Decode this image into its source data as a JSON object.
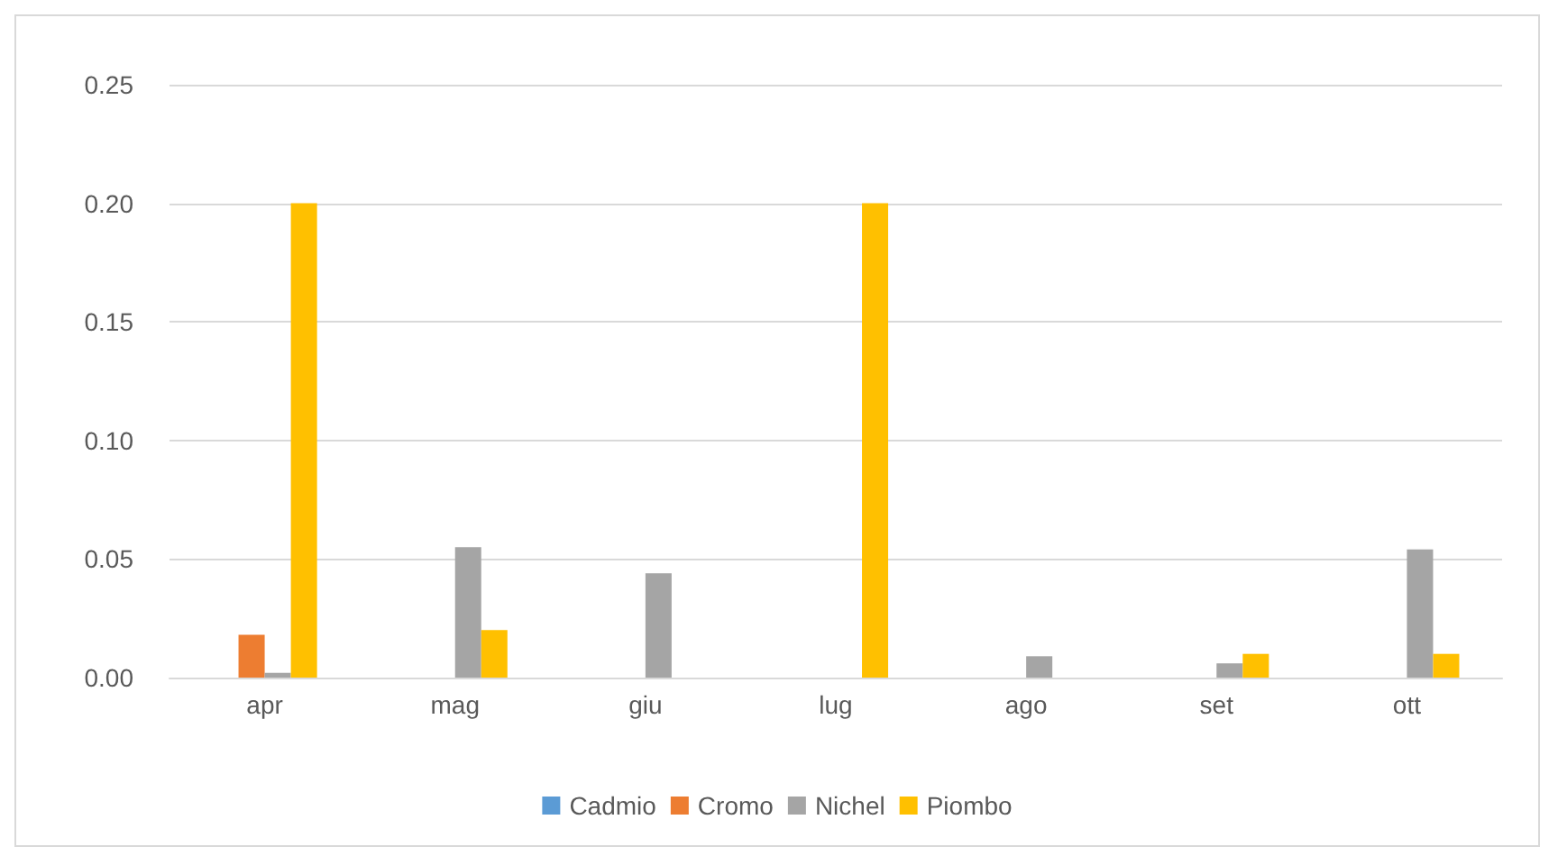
{
  "chart_data": {
    "type": "bar",
    "categories": [
      "apr",
      "mag",
      "giu",
      "lug",
      "ago",
      "set",
      "ott"
    ],
    "series": [
      {
        "name": "Cadmio",
        "color": "#5b9bd5",
        "values": [
          null,
          null,
          null,
          null,
          null,
          null,
          null
        ]
      },
      {
        "name": "Cromo",
        "color": "#ed7d31",
        "values": [
          0.018,
          null,
          null,
          null,
          null,
          null,
          null
        ]
      },
      {
        "name": "Nichel",
        "color": "#a5a5a5",
        "values": [
          0.002,
          0.055,
          0.044,
          null,
          0.009,
          0.006,
          0.054
        ]
      },
      {
        "name": "Piombo",
        "color": "#ffc000",
        "values": [
          0.2,
          0.02,
          null,
          0.2,
          null,
          0.01,
          0.01
        ]
      }
    ],
    "ylim": [
      0,
      0.25
    ],
    "yticks": [
      {
        "value": 0,
        "label": "0.00"
      },
      {
        "value": 0.05,
        "label": "0.05"
      },
      {
        "value": 0.1,
        "label": "0.10"
      },
      {
        "value": 0.15,
        "label": "0.15"
      },
      {
        "value": 0.2,
        "label": "0.20"
      },
      {
        "value": 0.25,
        "label": "0.25"
      }
    ],
    "grid": "y",
    "legend": "bottom"
  }
}
